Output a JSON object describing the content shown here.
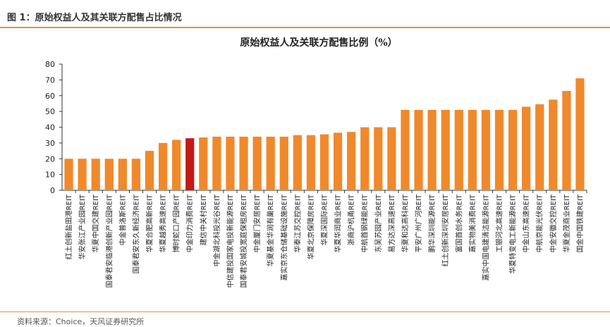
{
  "figure": {
    "caption": "图 1：原始权益人及其关联方配售占比情况",
    "source": "资料来源：Choice，天风证券研究所"
  },
  "colors": {
    "accent": "#f28a30",
    "bar": "#f0892c",
    "highlight": "#c41a17"
  },
  "chart_data": {
    "type": "bar",
    "title": "原始权益人及关联方配售比例（%）",
    "xlabel": "",
    "ylabel": "",
    "ylim": [
      0,
      80
    ],
    "yticks": [
      0,
      10,
      20,
      30,
      40,
      50,
      60,
      70,
      80
    ],
    "grid": false,
    "legend": "none",
    "highlight_category": "中金印力消费REIT",
    "categories": [
      "红土创新盐田港REIT",
      "华安张江产业园REIT",
      "华夏中国交建REIT",
      "国泰君安临港创新产业园REIT",
      "中金普洛斯REIT",
      "国泰君安东久新经济REIT",
      "华夏合肥高新REIT",
      "华夏越秀高速REIT",
      "博时蛇口产园REIT",
      "中金印力消费REIT",
      "建信中关村REIT",
      "中金湖北科投光谷REIT",
      "中信建投国家电投新能源REIT",
      "国泰君安城投宽庭保租房REIT",
      "中金厦门安居REIT",
      "华夏基金华润有巢REIT",
      "嘉实京东仓储基础设施REIT",
      "华泰江苏交控REIT",
      "华夏北京保障房REIT",
      "华夏深国际REIT",
      "华夏华润商业REIT",
      "浙商沪杭甬REIT",
      "中航首钢绿能REIT",
      "东吴苏园产业REIT",
      "易方达深高速REIT",
      "华夏和达高科REIT",
      "平安广州广河REIT",
      "鹏华深圳能源REIT",
      "红土创新深圳安居REIT",
      "富国首创水务REIT",
      "嘉实物美消费REIT",
      "嘉实中国电建清洁能源REIT",
      "工银河北高速REIT",
      "华夏特变电工新能源REIT",
      "中金山东高速REIT",
      "中航京能光伏REIT",
      "中金安徽交控REIT",
      "华夏金茂商业REIT",
      "国金中国铁建REIT"
    ],
    "values": [
      20,
      20,
      20,
      20,
      20,
      20,
      25,
      30,
      32,
      33,
      33.5,
      34,
      34,
      34,
      34,
      34,
      34,
      35,
      35,
      35.5,
      36.5,
      37,
      40,
      40,
      40,
      51,
      51,
      51,
      51,
      51,
      51,
      51,
      51,
      51,
      53,
      54.5,
      57.5,
      63,
      71
    ]
  }
}
